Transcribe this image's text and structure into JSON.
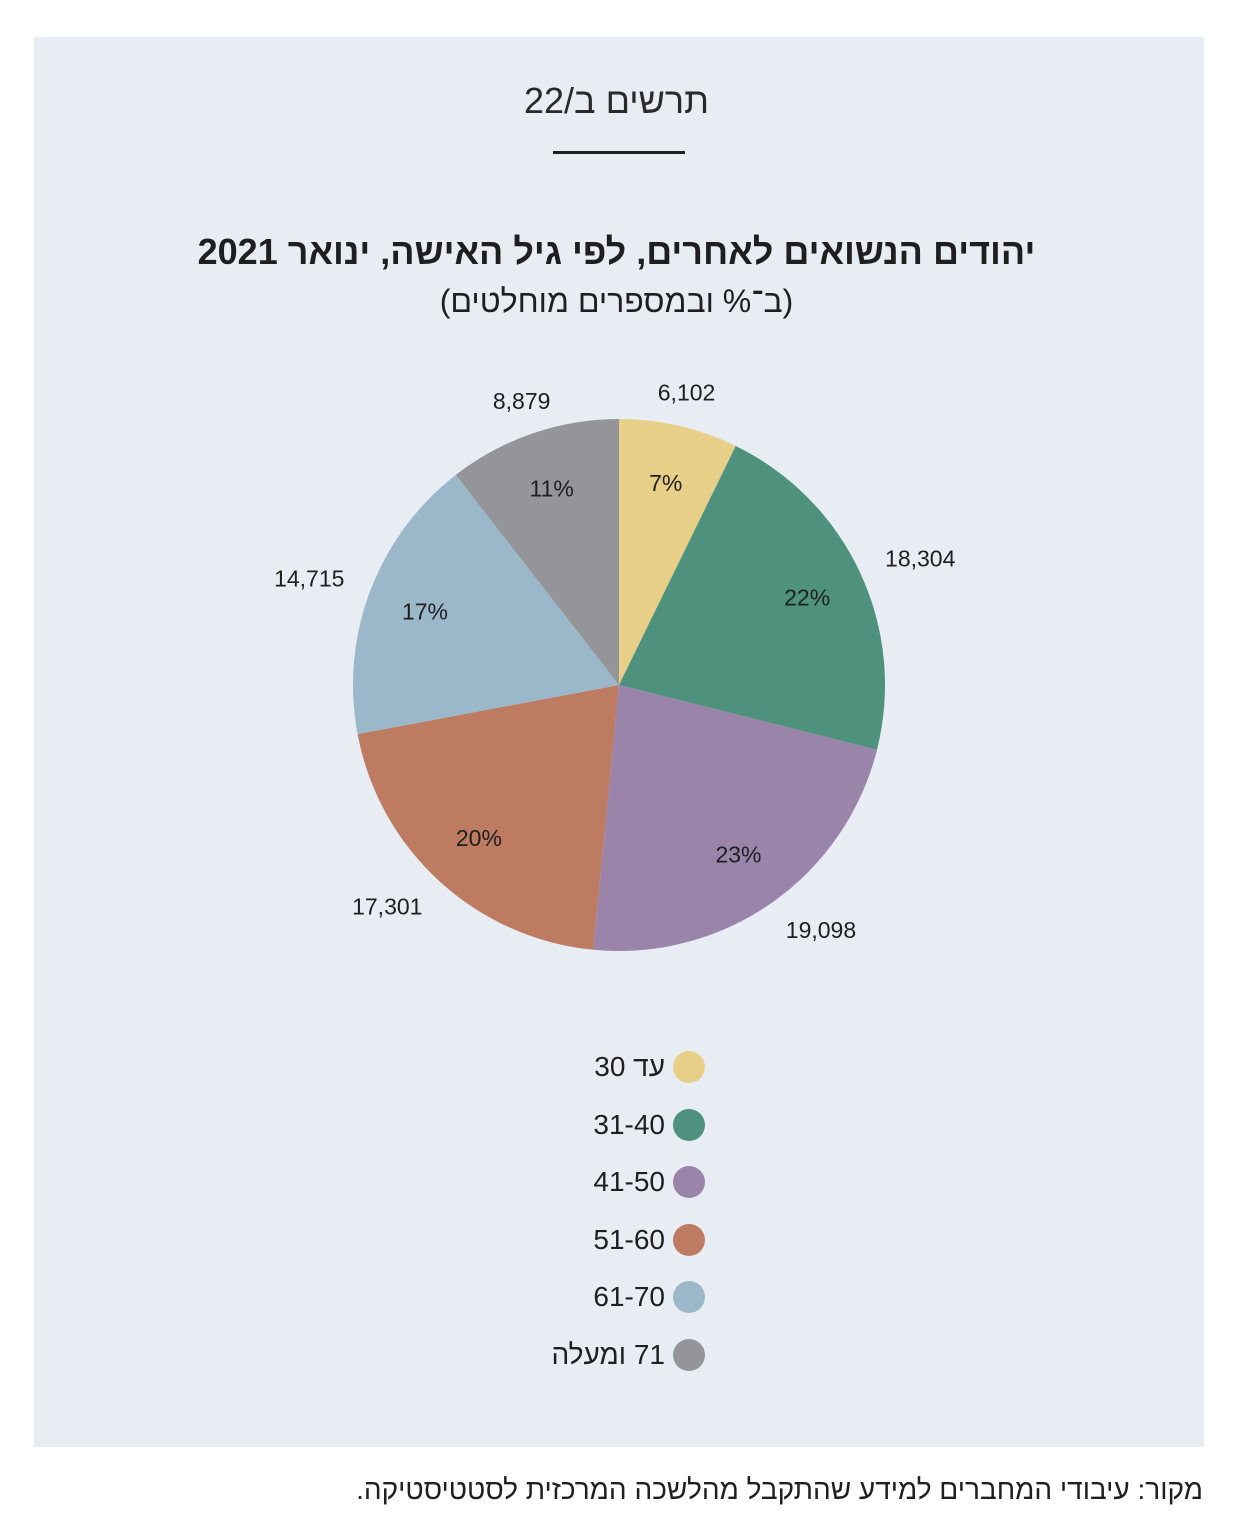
{
  "figure": {
    "label": "תרשים ב/22",
    "title": "יהודים הנשואים לאחרים, לפי גיל האישה, ינואר 2021",
    "subtitle": "(ב־% ובמספרים מוחלטים)",
    "source": "מקור: עיבודי המחברים למידע שהתקבל מהלשכה המרכזית לסטטיסטיקה."
  },
  "chart_data": {
    "type": "pie",
    "title": "יהודים הנשואים לאחרים, לפי גיל האישה, ינואר 2021",
    "subtitle": "(ב־% ובמספרים מוחלטים)",
    "legend_position": "bottom",
    "slices": [
      {
        "label": "עד 30",
        "value": 6102,
        "value_label": "6,102",
        "percent_label": "7%",
        "color": "#e8cf87"
      },
      {
        "label": "31-40",
        "value": 18304,
        "value_label": "18,304",
        "percent_label": "22%",
        "color": "#4e927e"
      },
      {
        "label": "41-50",
        "value": 19098,
        "value_label": "19,098",
        "percent_label": "23%",
        "color": "#9a84aa"
      },
      {
        "label": "51-60",
        "value": 17301,
        "value_label": "17,301",
        "percent_label": "20%",
        "color": "#bd7b62"
      },
      {
        "label": "61-70",
        "value": 14715,
        "value_label": "14,715",
        "percent_label": "17%",
        "color": "#9ab8ca"
      },
      {
        "label": "71 ומעלה",
        "value": 8879,
        "value_label": "8,879",
        "percent_label": "11%",
        "color": "#939598"
      }
    ]
  }
}
